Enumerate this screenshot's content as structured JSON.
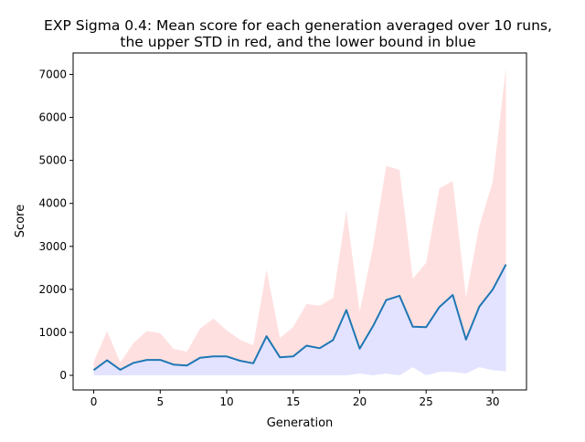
{
  "chart_data": {
    "type": "line",
    "title_line1": "EXP Sigma 0.4: Mean score for each generation averaged over 10 runs,",
    "title_line2": "the upper STD in red, and the lower bound in blue",
    "xlabel": "Generation",
    "ylabel": "Score",
    "xlim": [
      -1.55,
      32.55
    ],
    "ylim": [
      -340,
      7500
    ],
    "xticks": [
      0,
      5,
      10,
      15,
      20,
      25,
      30
    ],
    "yticks": [
      0,
      1000,
      2000,
      3000,
      4000,
      5000,
      6000,
      7000
    ],
    "x": [
      0,
      1,
      2,
      3,
      4,
      5,
      6,
      7,
      8,
      9,
      10,
      11,
      12,
      13,
      14,
      15,
      16,
      17,
      18,
      19,
      20,
      21,
      22,
      23,
      24,
      25,
      26,
      27,
      28,
      29,
      30,
      31
    ],
    "series": [
      {
        "role": "mean",
        "color": "#1f77b4",
        "values": [
          120,
          350,
          130,
          290,
          360,
          360,
          250,
          230,
          410,
          440,
          440,
          340,
          280,
          910,
          420,
          440,
          690,
          630,
          820,
          1520,
          620,
          1140,
          1750,
          1850,
          1130,
          1120,
          1590,
          1870,
          830,
          1600,
          1990,
          2580
        ]
      },
      {
        "role": "upper",
        "color": "#ff0000",
        "values": [
          310,
          1030,
          300,
          760,
          1030,
          980,
          620,
          550,
          1090,
          1320,
          1050,
          830,
          700,
          2460,
          870,
          1120,
          1660,
          1620,
          1800,
          3840,
          1480,
          2980,
          4870,
          4780,
          2250,
          2620,
          4350,
          4520,
          1820,
          3480,
          4490,
          7160
        ]
      },
      {
        "role": "lower",
        "color": "#0000ff",
        "values": [
          0,
          0,
          0,
          0,
          0,
          0,
          0,
          0,
          0,
          0,
          0,
          0,
          0,
          0,
          0,
          0,
          0,
          0,
          0,
          0,
          40,
          0,
          40,
          0,
          190,
          0,
          80,
          80,
          40,
          190,
          120,
          90
        ]
      }
    ]
  }
}
